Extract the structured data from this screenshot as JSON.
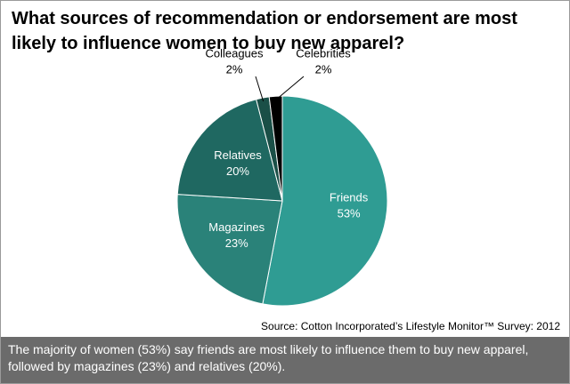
{
  "chart_data": {
    "type": "pie",
    "title": "What sources of recommendation or endorsement are most likely to influence women to buy new apparel?",
    "categories": [
      "Friends",
      "Magazines",
      "Relatives",
      "Colleagues",
      "Celebrities"
    ],
    "values": [
      53,
      23,
      20,
      2,
      2
    ],
    "value_labels": [
      "53%",
      "23%",
      "20%",
      "2%",
      "2%"
    ],
    "colors": [
      "#2f9c93",
      "#2a8279",
      "#1f6861",
      "#1a4f47",
      "#000000"
    ],
    "source": "Source: Cotton Incorporated’s Lifestyle Monitor™ Survey: 2012",
    "caption": "The majority of women (53%) say friends are most likely to influence them to buy new apparel, followed by magazines (23%) and relatives (20%)."
  }
}
